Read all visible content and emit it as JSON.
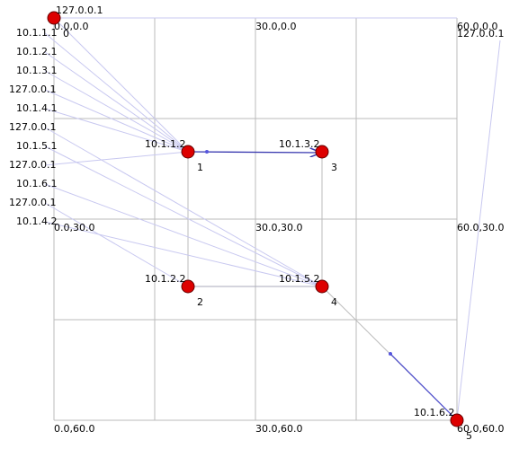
{
  "grid_labels": [
    "0.0,0.0",
    "30.0,0.0",
    "60.0,0.0",
    "0.0,30.0",
    "30.0,30.0",
    "60.0,30.0",
    "0.0,60.0",
    "30.0,60.0",
    "60.0,60.0"
  ],
  "nodes": [
    {
      "id": "0",
      "address": "127.0.0.1"
    },
    {
      "id": "1",
      "address": "10.1.1.2"
    },
    {
      "id": "2",
      "address": "10.1.2.2"
    },
    {
      "id": "3",
      "address": "10.1.3.2"
    },
    {
      "id": "4",
      "address": "10.1.5.2"
    },
    {
      "id": "5",
      "address": "10.1.6.2"
    }
  ],
  "side_labels": [
    "10.1.1.1",
    "10.1.2.1",
    "10.1.3.1",
    "127.0.0.1",
    "10.1.4.1",
    "127.0.0.1",
    "10.1.5.1",
    "127.0.0.1",
    "10.1.6.1",
    "127.0.0.1",
    "10.1.4.2"
  ],
  "corner_label": "127.0.0.1"
}
